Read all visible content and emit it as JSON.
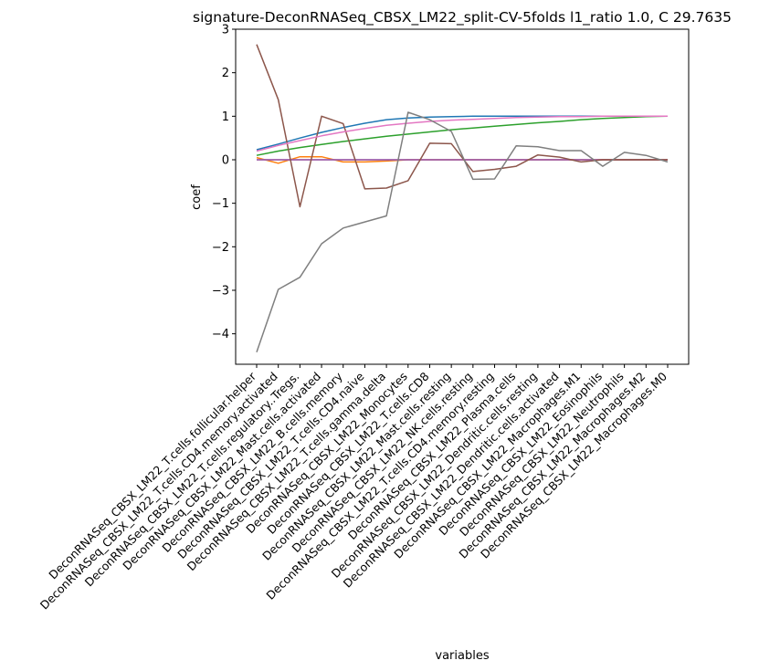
{
  "chart_data": {
    "type": "line",
    "title": "signature-DeconRNASeq_CBSX_LM22_split-CV-5folds l1_ratio 1.0, C 29.7635",
    "xlabel": "variables",
    "ylabel": "coef",
    "ylim": [
      -4.7,
      3.0
    ],
    "yticks": [
      -4,
      -3,
      -2,
      -1,
      0,
      1,
      2,
      3
    ],
    "grid": false,
    "categories": [
      "DeconRNASeq_CBSX_LM22_T.cells.follicular.helper",
      "DeconRNASeq_CBSX_LM22_T.cells.CD4.memory.activated",
      "DeconRNASeq_CBSX_LM22_T.cells.regulatory..Tregs.",
      "DeconRNASeq_CBSX_LM22_Mast.cells.activated",
      "DeconRNASeq_CBSX_LM22_B.cells.memory",
      "DeconRNASeq_CBSX_LM22_T.cells.CD4.naive",
      "DeconRNASeq_CBSX_LM22_T.cells.gamma.delta",
      "DeconRNASeq_CBSX_LM22_Monocytes",
      "DeconRNASeq_CBSX_LM22_T.cells.CD8",
      "DeconRNASeq_CBSX_LM22_Mast.cells.resting",
      "DeconRNASeq_CBSX_LM22_NK.cells.resting",
      "DeconRNASeq_CBSX_LM22_T.cells.CD4.memory.resting",
      "DeconRNASeq_CBSX_LM22_Plasma.cells",
      "DeconRNASeq_CBSX_LM22_Dendritic.cells.resting",
      "DeconRNASeq_CBSX_LM22_Dendritic.cells.activated",
      "DeconRNASeq_CBSX_LM22_Macrophages.M1",
      "DeconRNASeq_CBSX_LM22_Eosinophils",
      "DeconRNASeq_CBSX_LM22_Neutrophils",
      "DeconRNASeq_CBSX_LM22_Macrophages.M2",
      "DeconRNASeq_CBSX_LM22_Macrophages.M0"
    ],
    "series": [
      {
        "color": "#1f77b4",
        "values": [
          0.23,
          0.36,
          0.5,
          0.63,
          0.74,
          0.84,
          0.92,
          0.96,
          0.98,
          0.99,
          1.0,
          1.0,
          1.0,
          1.0,
          1.0,
          1.0,
          1.0,
          1.0,
          1.0,
          1.0
        ]
      },
      {
        "color": "#ff7f0e",
        "values": [
          0.05,
          -0.08,
          0.07,
          0.07,
          -0.05,
          -0.05,
          -0.03,
          0.0,
          0.0,
          0.0,
          0.0,
          0.0,
          0.0,
          0.0,
          0.0,
          0.0,
          0.0,
          0.0,
          0.0,
          0.0
        ]
      },
      {
        "color": "#2ca02c",
        "values": [
          0.1,
          0.2,
          0.28,
          0.35,
          0.42,
          0.48,
          0.54,
          0.59,
          0.64,
          0.69,
          0.73,
          0.77,
          0.81,
          0.85,
          0.88,
          0.92,
          0.95,
          0.97,
          0.99,
          1.0
        ]
      },
      {
        "color": "#d62728",
        "values": [
          0.0,
          0.0,
          0.0,
          0.0,
          0.0,
          0.0,
          0.0,
          0.0,
          0.0,
          0.0,
          0.0,
          0.0,
          0.0,
          0.0,
          0.0,
          0.0,
          0.0,
          0.0,
          0.0,
          0.0
        ]
      },
      {
        "color": "#9467bd",
        "values": [
          0.0,
          0.0,
          0.0,
          0.0,
          0.0,
          0.0,
          0.0,
          0.0,
          0.0,
          0.0,
          0.0,
          0.0,
          0.0,
          0.0,
          0.0,
          0.0,
          0.0,
          0.0,
          0.0,
          0.0
        ]
      },
      {
        "color": "#8c564b",
        "values": [
          2.65,
          1.38,
          -1.08,
          1.0,
          0.83,
          -0.67,
          -0.65,
          -0.48,
          0.38,
          0.37,
          -0.27,
          -0.22,
          -0.15,
          0.11,
          0.06,
          -0.05,
          0.0,
          0.0,
          0.0,
          0.0
        ]
      },
      {
        "color": "#e377c2",
        "values": [
          0.2,
          0.33,
          0.44,
          0.55,
          0.64,
          0.72,
          0.79,
          0.84,
          0.88,
          0.91,
          0.93,
          0.95,
          0.97,
          0.98,
          0.99,
          0.99,
          1.0,
          1.0,
          1.0,
          1.0
        ]
      },
      {
        "color": "#7f7f7f",
        "values": [
          -4.42,
          -2.98,
          -2.7,
          -1.93,
          -1.57,
          -1.43,
          -1.29,
          1.09,
          0.92,
          0.65,
          -0.45,
          -0.44,
          0.32,
          0.3,
          0.21,
          0.21,
          -0.15,
          0.17,
          0.1,
          -0.05
        ]
      }
    ]
  }
}
